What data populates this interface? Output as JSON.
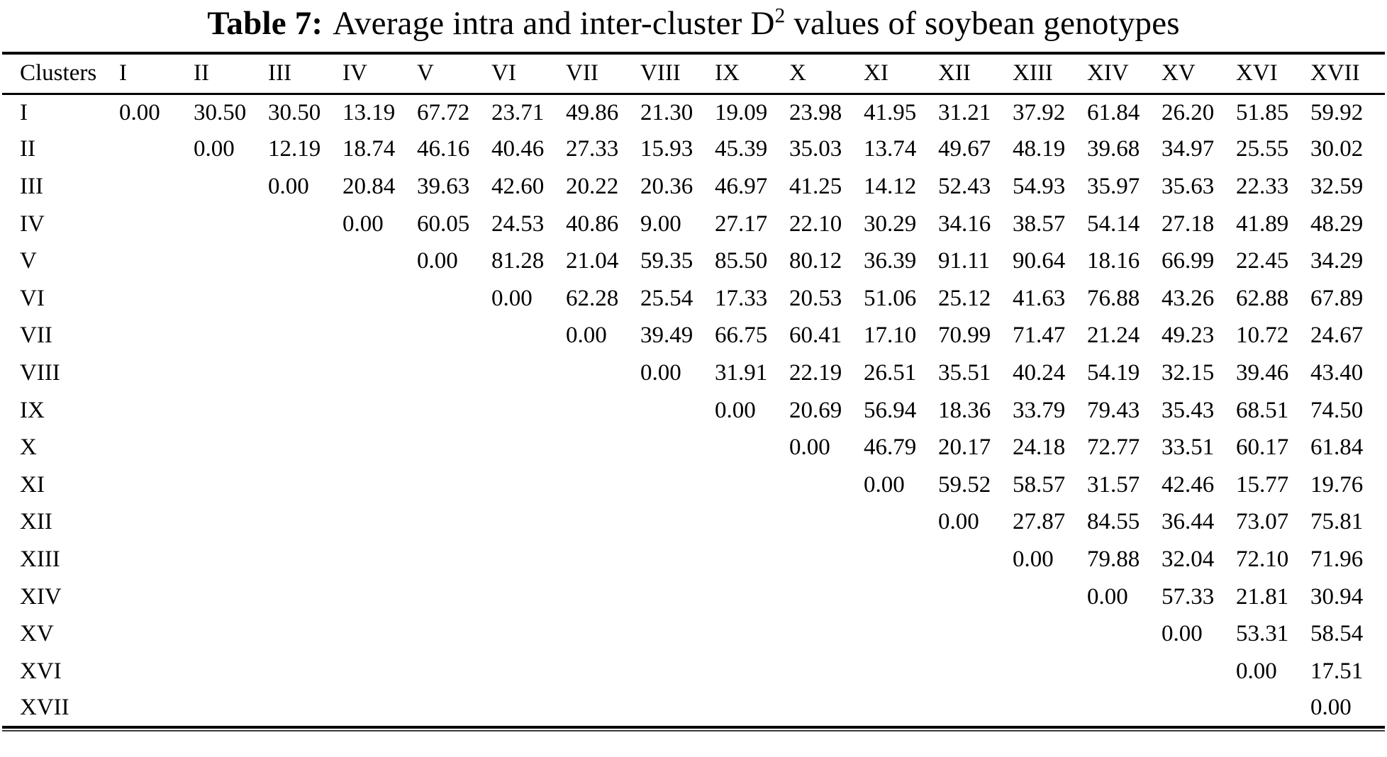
{
  "title": {
    "table_number": "Table 7:",
    "caption_before_sup": "Average intra and inter-cluster D",
    "caption_sup": "2",
    "caption_after_sup": " values of soybean genotypes"
  },
  "table": {
    "header": [
      "Clusters",
      "I",
      "II",
      "III",
      "IV",
      "V",
      "VI",
      "VII",
      "VIII",
      "IX",
      "X",
      "XI",
      "XII",
      "XIII",
      "XIV",
      "XV",
      "XVI",
      "XVII"
    ],
    "rows": [
      {
        "label": "I",
        "cells": [
          "0.00",
          "30.50",
          "30.50",
          "13.19",
          "67.72",
          "23.71",
          "49.86",
          "21.30",
          "19.09",
          "23.98",
          "41.95",
          "31.21",
          "37.92",
          "61.84",
          "26.20",
          "51.85",
          "59.92"
        ]
      },
      {
        "label": "II",
        "cells": [
          "",
          "0.00",
          "12.19",
          "18.74",
          "46.16",
          "40.46",
          "27.33",
          "15.93",
          "45.39",
          "35.03",
          "13.74",
          "49.67",
          "48.19",
          "39.68",
          "34.97",
          "25.55",
          "30.02"
        ]
      },
      {
        "label": "III",
        "cells": [
          "",
          "",
          "0.00",
          "20.84",
          "39.63",
          "42.60",
          "20.22",
          "20.36",
          "46.97",
          "41.25",
          "14.12",
          "52.43",
          "54.93",
          "35.97",
          "35.63",
          "22.33",
          "32.59"
        ]
      },
      {
        "label": "IV",
        "cells": [
          "",
          "",
          "",
          "0.00",
          "60.05",
          "24.53",
          "40.86",
          "9.00",
          "27.17",
          "22.10",
          "30.29",
          "34.16",
          "38.57",
          "54.14",
          "27.18",
          "41.89",
          "48.29"
        ]
      },
      {
        "label": "V",
        "cells": [
          "",
          "",
          "",
          "",
          "0.00",
          "81.28",
          "21.04",
          "59.35",
          "85.50",
          "80.12",
          "36.39",
          "91.11",
          "90.64",
          "18.16",
          "66.99",
          "22.45",
          "34.29"
        ]
      },
      {
        "label": "VI",
        "cells": [
          "",
          "",
          "",
          "",
          "",
          "0.00",
          "62.28",
          "25.54",
          "17.33",
          "20.53",
          "51.06",
          "25.12",
          "41.63",
          "76.88",
          "43.26",
          "62.88",
          "67.89"
        ]
      },
      {
        "label": "VII",
        "cells": [
          "",
          "",
          "",
          "",
          "",
          "",
          "0.00",
          "39.49",
          "66.75",
          "60.41",
          "17.10",
          "70.99",
          "71.47",
          "21.24",
          "49.23",
          "10.72",
          "24.67"
        ]
      },
      {
        "label": "VIII",
        "cells": [
          "",
          "",
          "",
          "",
          "",
          "",
          "",
          "0.00",
          "31.91",
          "22.19",
          "26.51",
          "35.51",
          "40.24",
          "54.19",
          "32.15",
          "39.46",
          "43.40"
        ]
      },
      {
        "label": "IX",
        "cells": [
          "",
          "",
          "",
          "",
          "",
          "",
          "",
          "",
          "0.00",
          "20.69",
          "56.94",
          "18.36",
          "33.79",
          "79.43",
          "35.43",
          "68.51",
          "74.50"
        ]
      },
      {
        "label": "X",
        "cells": [
          "",
          "",
          "",
          "",
          "",
          "",
          "",
          "",
          "",
          "0.00",
          "46.79",
          "20.17",
          "24.18",
          "72.77",
          "33.51",
          "60.17",
          "61.84"
        ]
      },
      {
        "label": "XI",
        "cells": [
          "",
          "",
          "",
          "",
          "",
          "",
          "",
          "",
          "",
          "",
          "0.00",
          "59.52",
          "58.57",
          "31.57",
          "42.46",
          "15.77",
          "19.76"
        ]
      },
      {
        "label": "XII",
        "cells": [
          "",
          "",
          "",
          "",
          "",
          "",
          "",
          "",
          "",
          "",
          "",
          "0.00",
          "27.87",
          "84.55",
          "36.44",
          "73.07",
          "75.81"
        ]
      },
      {
        "label": "XIII",
        "cells": [
          "",
          "",
          "",
          "",
          "",
          "",
          "",
          "",
          "",
          "",
          "",
          "",
          "0.00",
          "79.88",
          "32.04",
          "72.10",
          "71.96"
        ]
      },
      {
        "label": "XIV",
        "cells": [
          "",
          "",
          "",
          "",
          "",
          "",
          "",
          "",
          "",
          "",
          "",
          "",
          "",
          "0.00",
          "57.33",
          "21.81",
          "30.94"
        ]
      },
      {
        "label": "XV",
        "cells": [
          "",
          "",
          "",
          "",
          "",
          "",
          "",
          "",
          "",
          "",
          "",
          "",
          "",
          "",
          "0.00",
          "53.31",
          "58.54"
        ]
      },
      {
        "label": "XVI",
        "cells": [
          "",
          "",
          "",
          "",
          "",
          "",
          "",
          "",
          "",
          "",
          "",
          "",
          "",
          "",
          "",
          "0.00",
          "17.51"
        ]
      },
      {
        "label": "XVII",
        "cells": [
          "",
          "",
          "",
          "",
          "",
          "",
          "",
          "",
          "",
          "",
          "",
          "",
          "",
          "",
          "",
          "",
          "0.00"
        ]
      }
    ]
  }
}
